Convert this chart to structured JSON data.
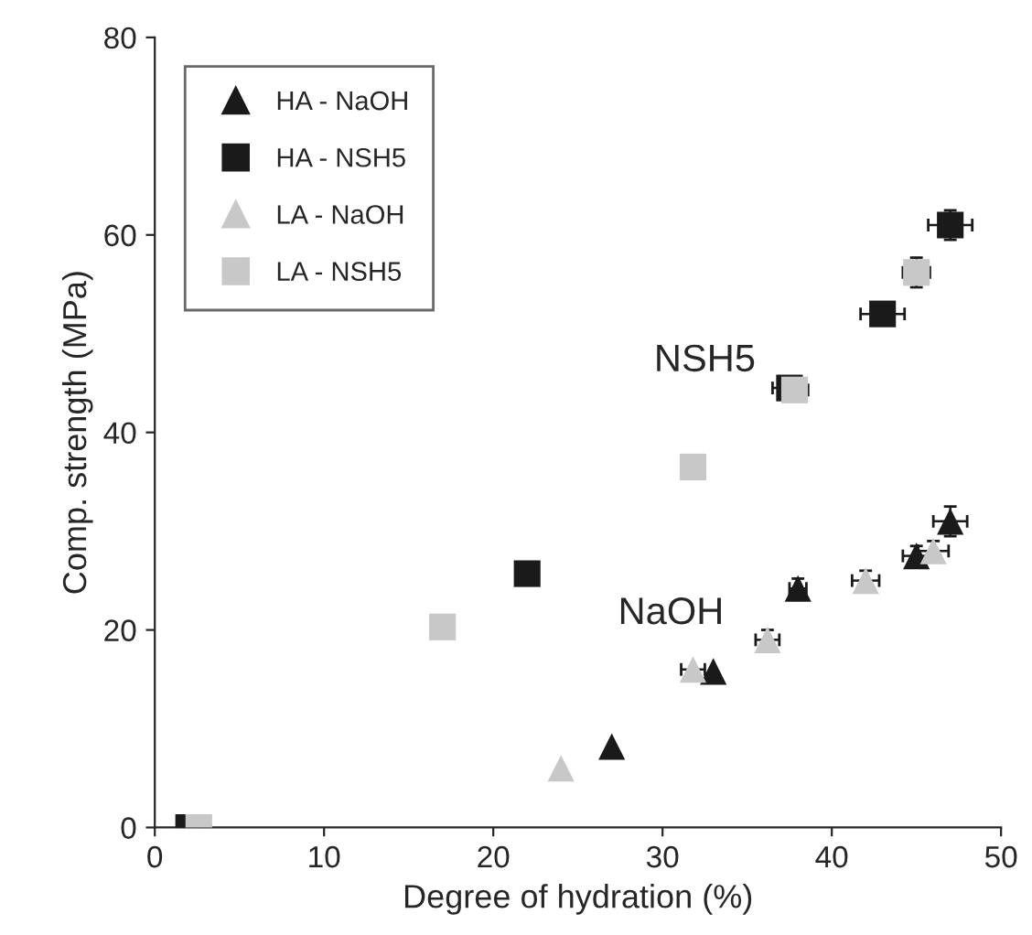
{
  "chart_data": {
    "type": "scatter",
    "xlabel": "Degree of hydration (%)",
    "ylabel": "Comp. strength (MPa)",
    "xlim": [
      0,
      50
    ],
    "ylim": [
      0,
      80
    ],
    "xticks": [
      0,
      10,
      20,
      30,
      40,
      50
    ],
    "yticks": [
      0,
      20,
      40,
      60,
      80
    ],
    "grid": false,
    "legend": "top left",
    "series": [
      {
        "name": "HA - NaOH",
        "color": "#1a1a1a",
        "marker": "triangle",
        "x": [
          27,
          33,
          38,
          45,
          47
        ],
        "values": [
          8.2,
          15.8,
          24.2,
          27.5,
          31
        ],
        "errors": [
          null,
          null,
          1,
          1,
          1.5
        ],
        "xerrors": [
          null,
          null,
          0.5,
          0.8,
          1
        ]
      },
      {
        "name": "HA - NSH5",
        "color": "#1a1a1a",
        "marker": "square",
        "x": [
          2,
          22,
          37.5,
          43,
          47
        ],
        "values": [
          0,
          25.7,
          44.5,
          52,
          61
        ],
        "errors": [
          null,
          null,
          1,
          1,
          1.5
        ],
        "xerrors": [
          null,
          null,
          1,
          1.3,
          1.3
        ]
      },
      {
        "name": "LA - NaOH",
        "color": "#c8c8c8",
        "marker": "triangle",
        "x": [
          24,
          31.8,
          36.2,
          42,
          46
        ],
        "values": [
          6,
          16,
          19,
          25,
          28
        ],
        "errors": [
          null,
          null,
          1,
          1,
          1
        ],
        "xerrors": [
          null,
          0.7,
          0.7,
          0.8,
          0.9
        ]
      },
      {
        "name": "LA - NSH5",
        "color": "#c8c8c8",
        "marker": "square",
        "x": [
          2.6,
          17,
          31.8,
          37.8,
          45
        ],
        "values": [
          0,
          20.3,
          36.5,
          44.3,
          56.2
        ],
        "errors": [
          null,
          null,
          null,
          1,
          1.5
        ],
        "xerrors": [
          null,
          null,
          null,
          0.8,
          0.8
        ]
      }
    ],
    "annotations": [
      "NSH5",
      "NaOH"
    ]
  }
}
